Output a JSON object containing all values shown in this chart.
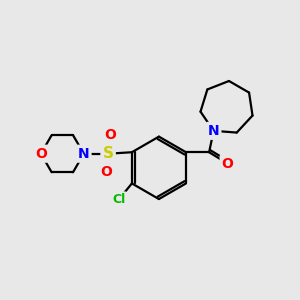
{
  "bg_color": "#e8e8e8",
  "bond_color": "#000000",
  "bond_width": 1.6,
  "atom_colors": {
    "N": "#0000ff",
    "O": "#ff0000",
    "S": "#cccc00",
    "Cl": "#00bb00",
    "C": "#000000"
  },
  "font_size": 9,
  "fig_size": [
    3.0,
    3.0
  ],
  "dpi": 100
}
